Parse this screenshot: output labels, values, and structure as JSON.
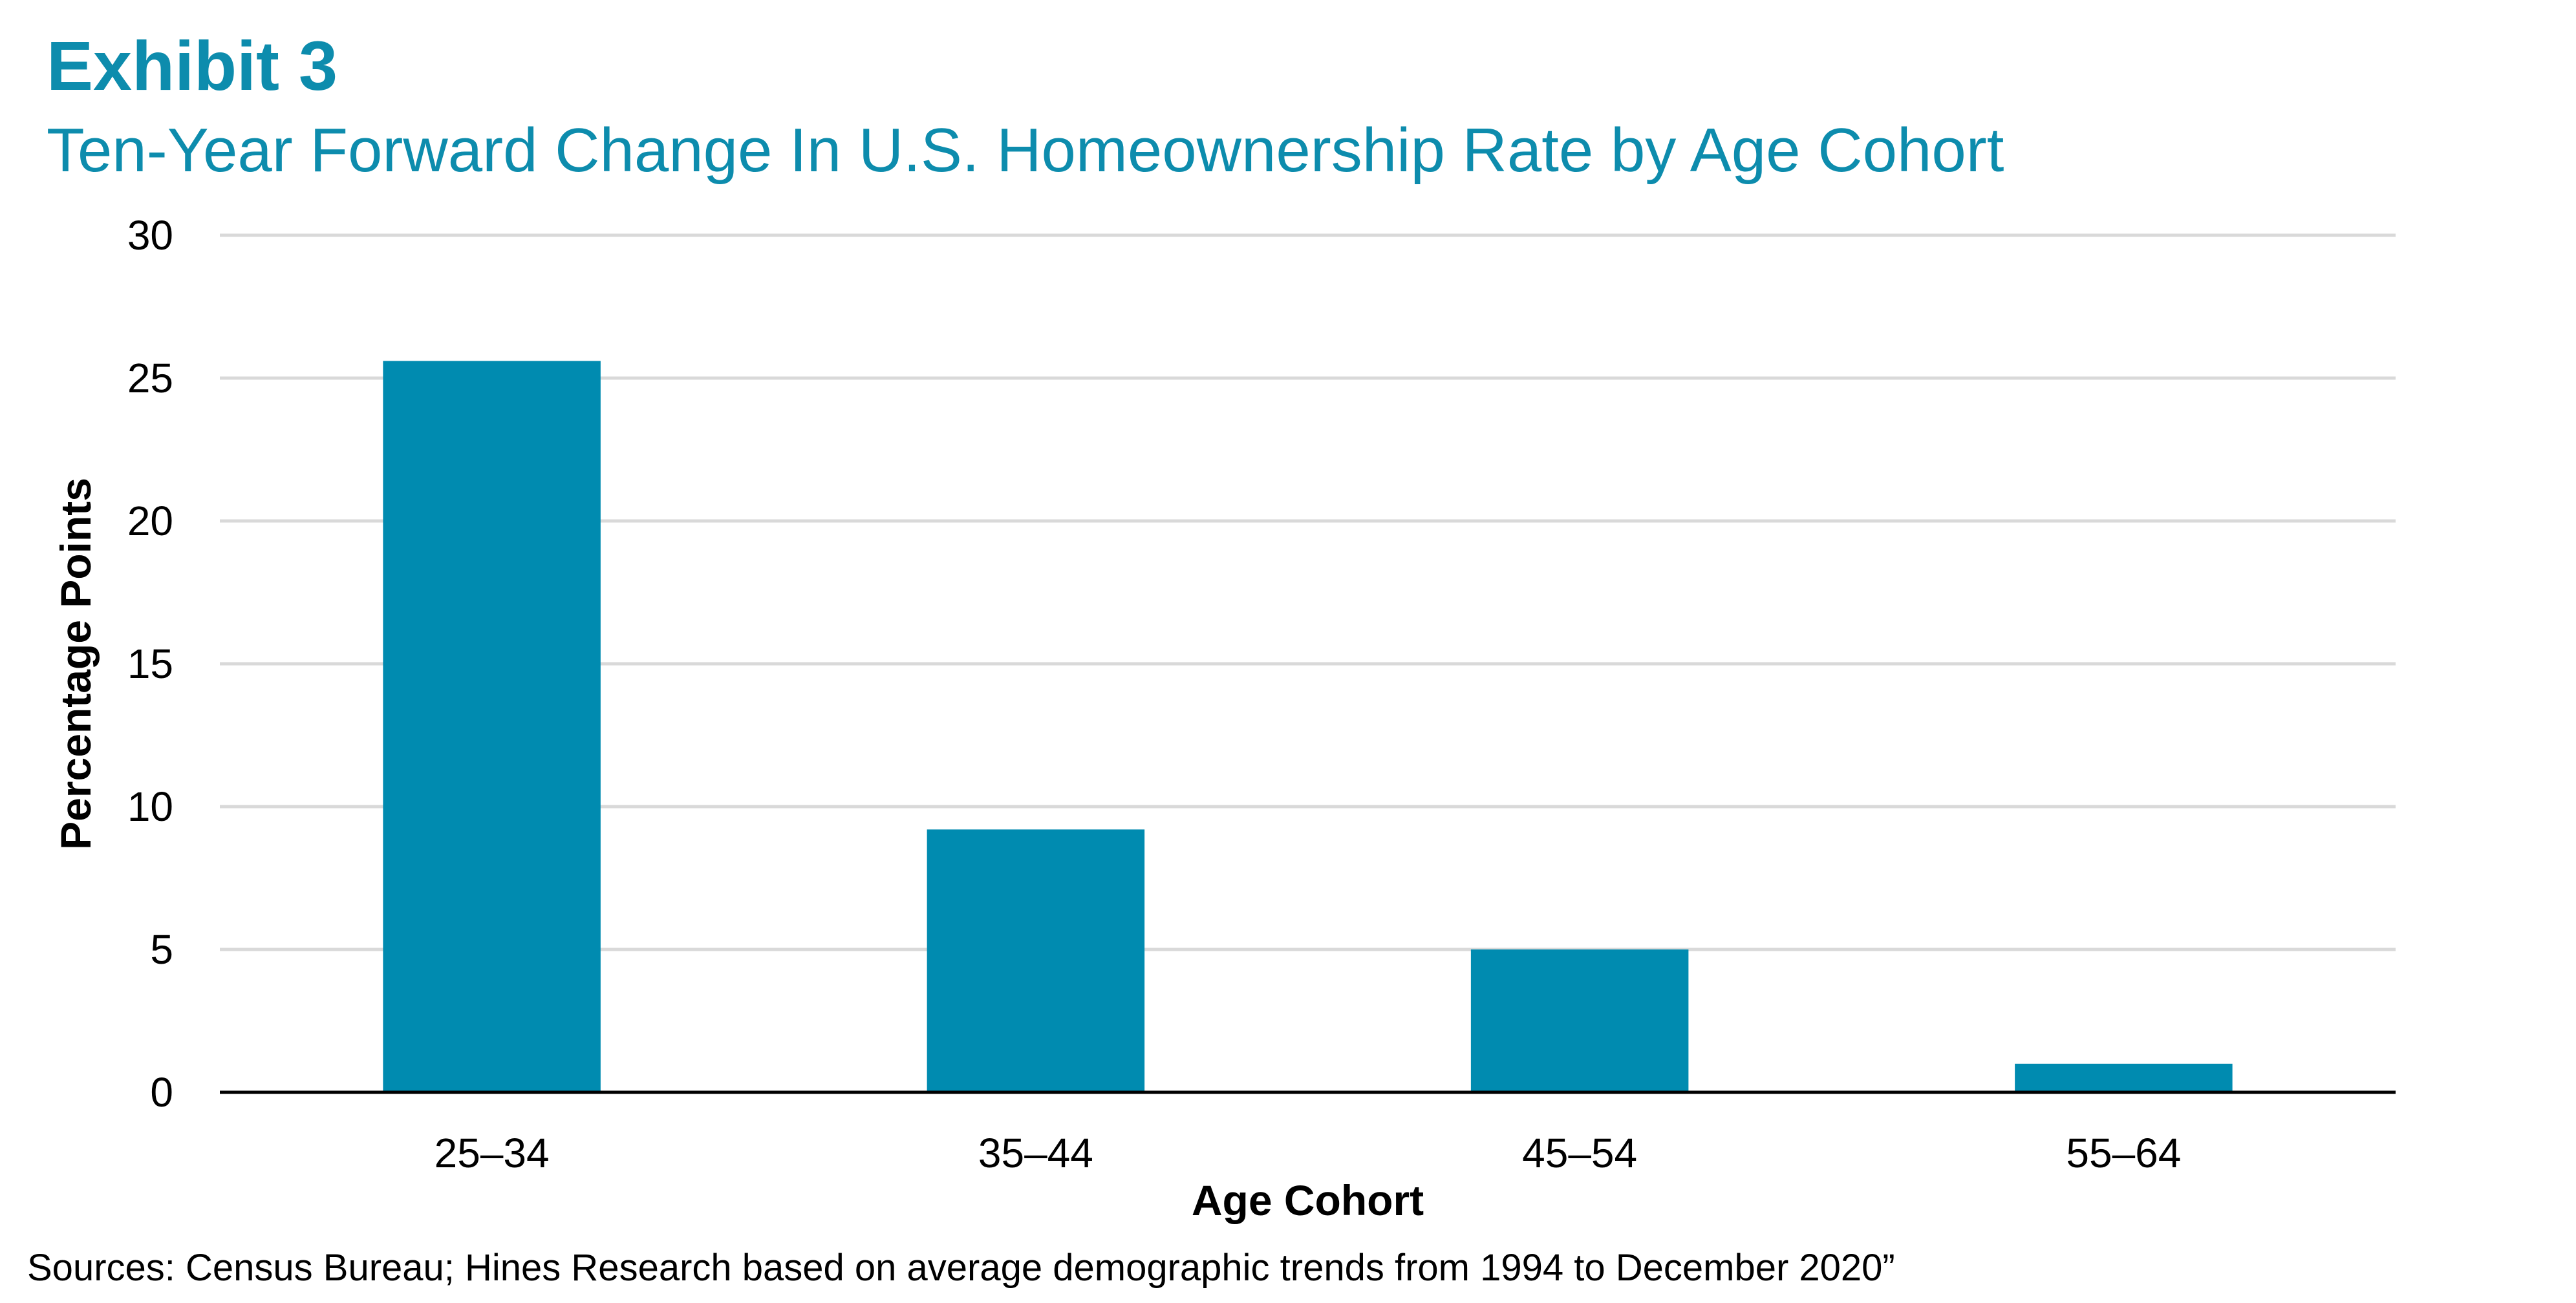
{
  "header": {
    "exhibit_label": "Exhibit 3",
    "title": "Ten-Year Forward Change In U.S. Homeownership Rate by Age Cohort"
  },
  "footer": {
    "source": "Sources: Census Bureau; Hines Research based on average demographic trends from 1994 to December 2020”"
  },
  "chart_data": {
    "type": "bar",
    "title": "Ten-Year Forward Change In U.S. Homeownership Rate by Age Cohort",
    "xlabel": "Age Cohort",
    "ylabel": "Percentage Points",
    "categories": [
      "25–34",
      "35–44",
      "45–54",
      "55–64"
    ],
    "values": [
      25.6,
      9.2,
      5.0,
      1.0
    ],
    "ylim": [
      0,
      30
    ],
    "yticks": [
      0,
      5,
      10,
      15,
      20,
      25,
      30
    ],
    "grid": true,
    "legend": "none",
    "colors": {
      "bar": "#008bb0",
      "title": "#0d8cad",
      "grid": "#d9d9d9",
      "axis": "#000000"
    }
  }
}
